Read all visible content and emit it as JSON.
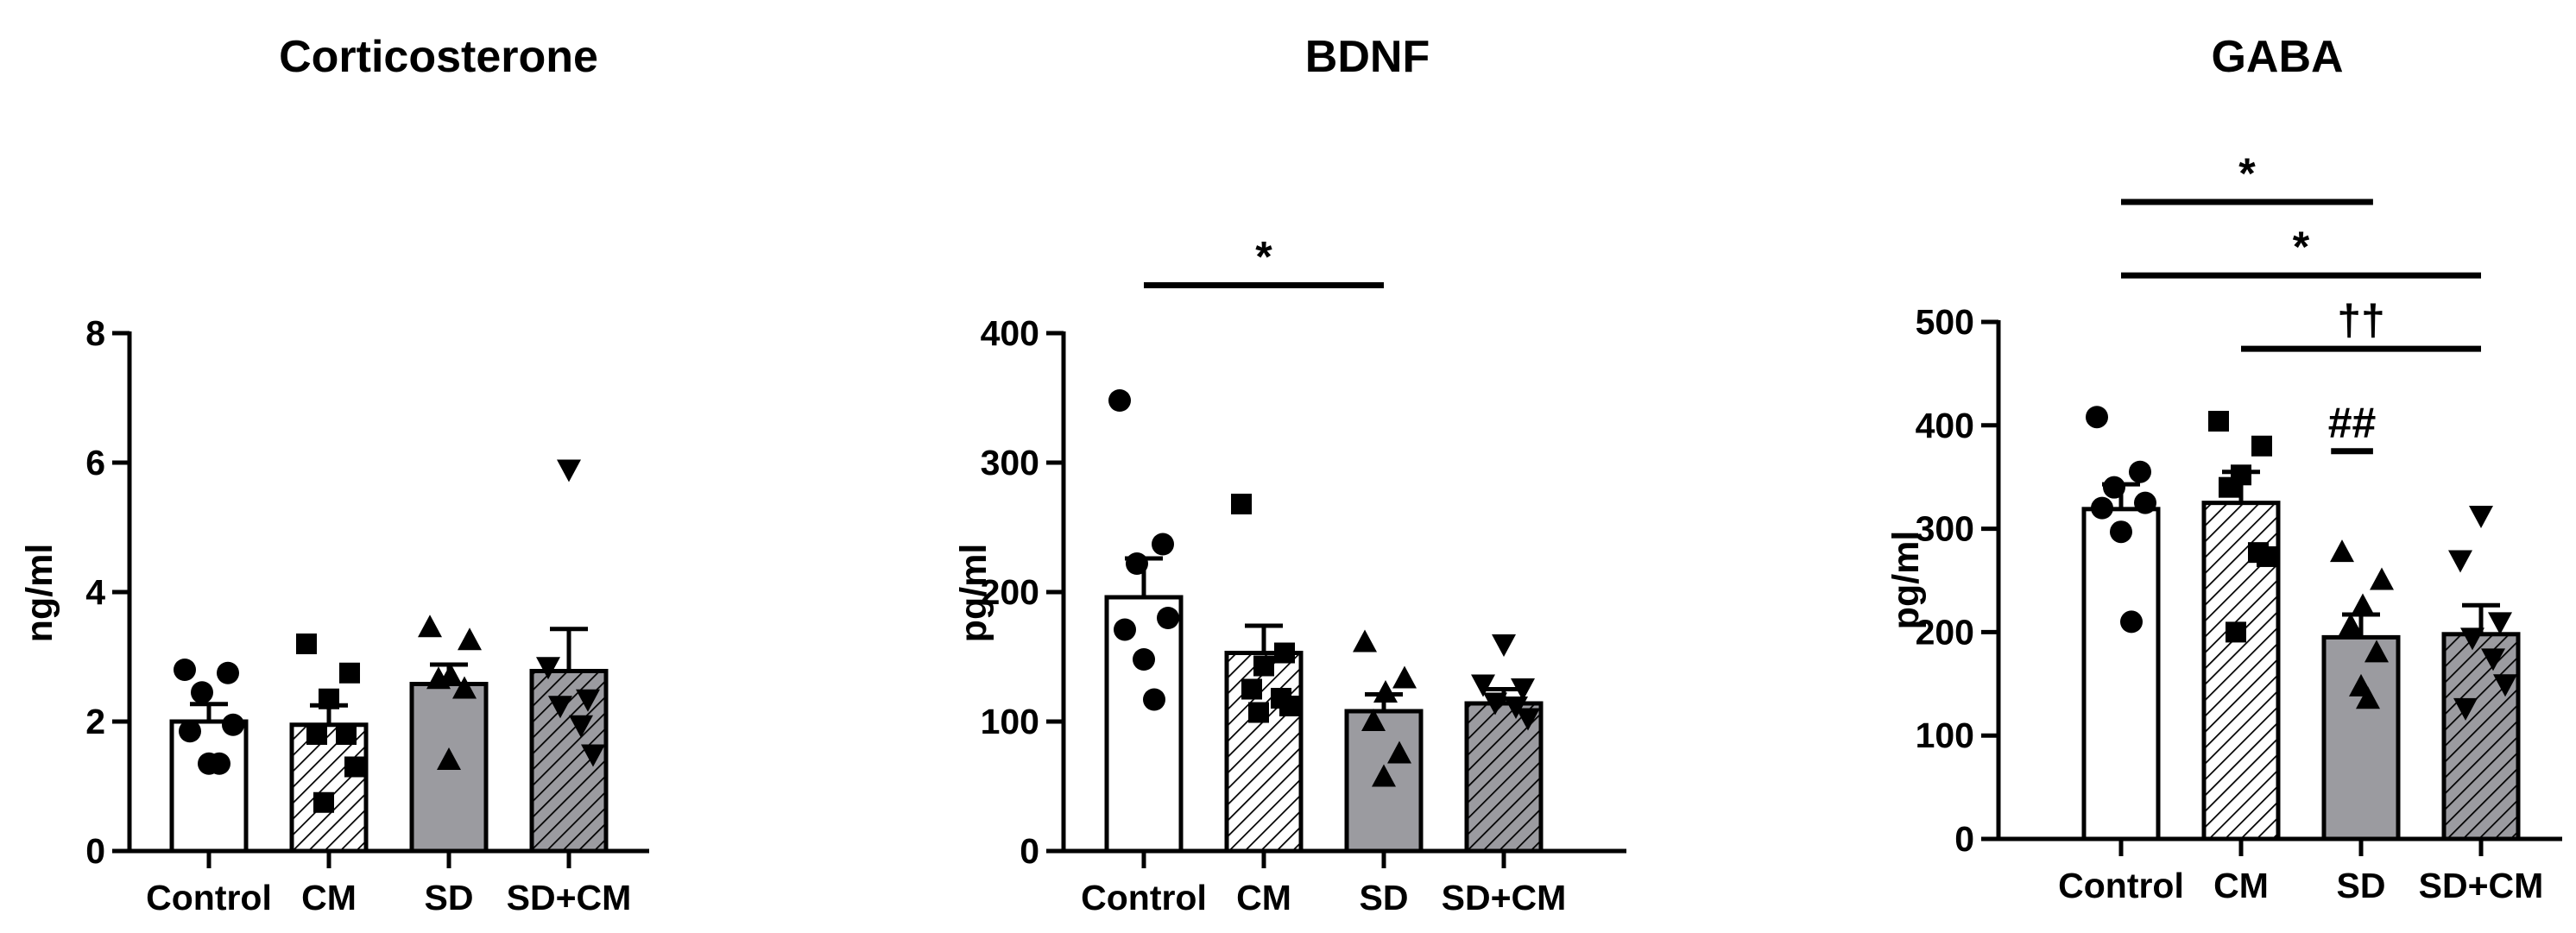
{
  "chart_data": [
    {
      "type": "bar",
      "title": "Corticosterone",
      "ylabel": "ng/ml",
      "ylim": [
        0,
        8
      ],
      "yticks": [
        0,
        2,
        4,
        6,
        8
      ],
      "categories": [
        "Control",
        "CM",
        "SD",
        "SD+CM"
      ],
      "means": [
        2.0,
        1.95,
        2.58,
        2.78
      ],
      "sem": [
        0.27,
        0.3,
        0.3,
        0.65
      ],
      "points": [
        [
          2.8,
          2.75,
          2.45,
          1.95,
          1.85,
          1.35,
          1.35
        ],
        [
          3.2,
          2.75,
          2.35,
          1.8,
          1.8,
          1.3,
          0.75
        ],
        [
          3.45,
          3.25,
          2.7,
          2.65,
          2.5,
          1.4
        ],
        [
          5.9,
          2.85,
          2.35,
          2.25,
          1.95,
          1.5
        ]
      ],
      "significance": []
    },
    {
      "type": "bar",
      "title": "BDNF",
      "ylabel": "pg/ml",
      "ylim": [
        0,
        400
      ],
      "yticks": [
        0,
        100,
        200,
        300,
        400
      ],
      "categories": [
        "Control",
        "CM",
        "SD",
        "SD+CM"
      ],
      "means": [
        196,
        153,
        108,
        114
      ],
      "sem": [
        30,
        21,
        13,
        11
      ],
      "points": [
        [
          348,
          237,
          222,
          180,
          171,
          148,
          117
        ],
        [
          268,
          153,
          143,
          125,
          118,
          112,
          107
        ],
        [
          161,
          133,
          122,
          100,
          75,
          57
        ],
        [
          160,
          129,
          126,
          115,
          112,
          103
        ]
      ],
      "significance": [
        {
          "from": 0,
          "to": 2,
          "y": 437,
          "label": "*"
        }
      ]
    },
    {
      "type": "bar",
      "title": "GABA",
      "ylabel": "pg/ml",
      "ylim": [
        0,
        500
      ],
      "yticks": [
        0,
        100,
        200,
        300,
        400,
        500
      ],
      "categories": [
        "Control",
        "CM",
        "SD",
        "SD+CM"
      ],
      "means": [
        319,
        325,
        195,
        198
      ],
      "sem": [
        24,
        30,
        22,
        28
      ],
      "points": [
        [
          408,
          355,
          340,
          325,
          320,
          297,
          210
        ],
        [
          404,
          380,
          352,
          340,
          277,
          273,
          200
        ],
        [
          277,
          250,
          225,
          206,
          180,
          147,
          135
        ],
        [
          313,
          270,
          210,
          195,
          175,
          150,
          127
        ]
      ],
      "significance": [
        {
          "from": 0,
          "to": 2.1,
          "y": 616,
          "label": "*"
        },
        {
          "from": 0,
          "to": 3,
          "y": 545,
          "label": "*"
        },
        {
          "from": 1,
          "to": 3,
          "y": 474,
          "label": "††"
        },
        {
          "from": 1.75,
          "to": 2.1,
          "y": 375,
          "label": "##"
        }
      ]
    }
  ]
}
